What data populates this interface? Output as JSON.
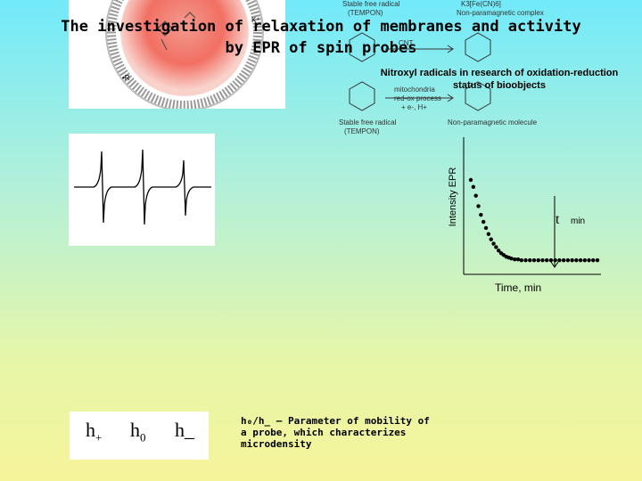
{
  "title": {
    "line1": "The investigation of relaxation of membranes and activity",
    "line2": "by EPR of spin probes"
  },
  "scheme": {
    "top_left": "Stable free radical",
    "top_left_sub": "(TEMPON)",
    "top_right_formula": "K3[Fe(CN)6]",
    "top_right": "Non-paramagnetic complex",
    "cnt": "CNT",
    "mito": "mitochondria",
    "redox": "red-ox process",
    "redox2": "+ e-, H+",
    "bottom_left": "Stable free radical",
    "bottom_left_sub": "(TEMPON)",
    "bottom_right": "Non-paramagnetic molecule"
  },
  "nitroxyl": {
    "line1": "Nitroxyl radicals in research of oxidation-reduction",
    "line2": "status of bioobjects"
  },
  "kinetics": {
    "ylabel": "Intensity EPR",
    "xlabel": "Time, min",
    "t_symbol": "t",
    "t_unit": "min",
    "points": [
      [
        0,
        100
      ],
      [
        0.3,
        92
      ],
      [
        0.6,
        82
      ],
      [
        0.9,
        70
      ],
      [
        1.2,
        60
      ],
      [
        1.5,
        52
      ],
      [
        1.8,
        45
      ],
      [
        2.1,
        38
      ],
      [
        2.4,
        32
      ],
      [
        2.7,
        27
      ],
      [
        3,
        23
      ],
      [
        3.3,
        19
      ],
      [
        3.6,
        16
      ],
      [
        3.9,
        14
      ],
      [
        4.2,
        12
      ],
      [
        4.5,
        11
      ],
      [
        4.8,
        10
      ],
      [
        5.2,
        9
      ],
      [
        5.6,
        9
      ],
      [
        6,
        8
      ],
      [
        6.5,
        8
      ],
      [
        7,
        8
      ],
      [
        7.5,
        8
      ],
      [
        8,
        8
      ],
      [
        8.5,
        8
      ],
      [
        9,
        8
      ],
      [
        9.5,
        8
      ],
      [
        10,
        8
      ],
      [
        10.5,
        8
      ],
      [
        11,
        8
      ],
      [
        11.5,
        8
      ],
      [
        12,
        8
      ],
      [
        12.5,
        8
      ],
      [
        13,
        8
      ],
      [
        13.5,
        8
      ],
      [
        14,
        8
      ],
      [
        14.5,
        8
      ],
      [
        15,
        8
      ]
    ]
  },
  "hfs": {
    "h_plus": "h",
    "h_plus_sub": "+",
    "h_zero": "h",
    "h_zero_sub": "0",
    "h_minus": "h_"
  },
  "description": "h₀/h_ – Parameter of mobility of a probe, which characterizes microdensity"
}
